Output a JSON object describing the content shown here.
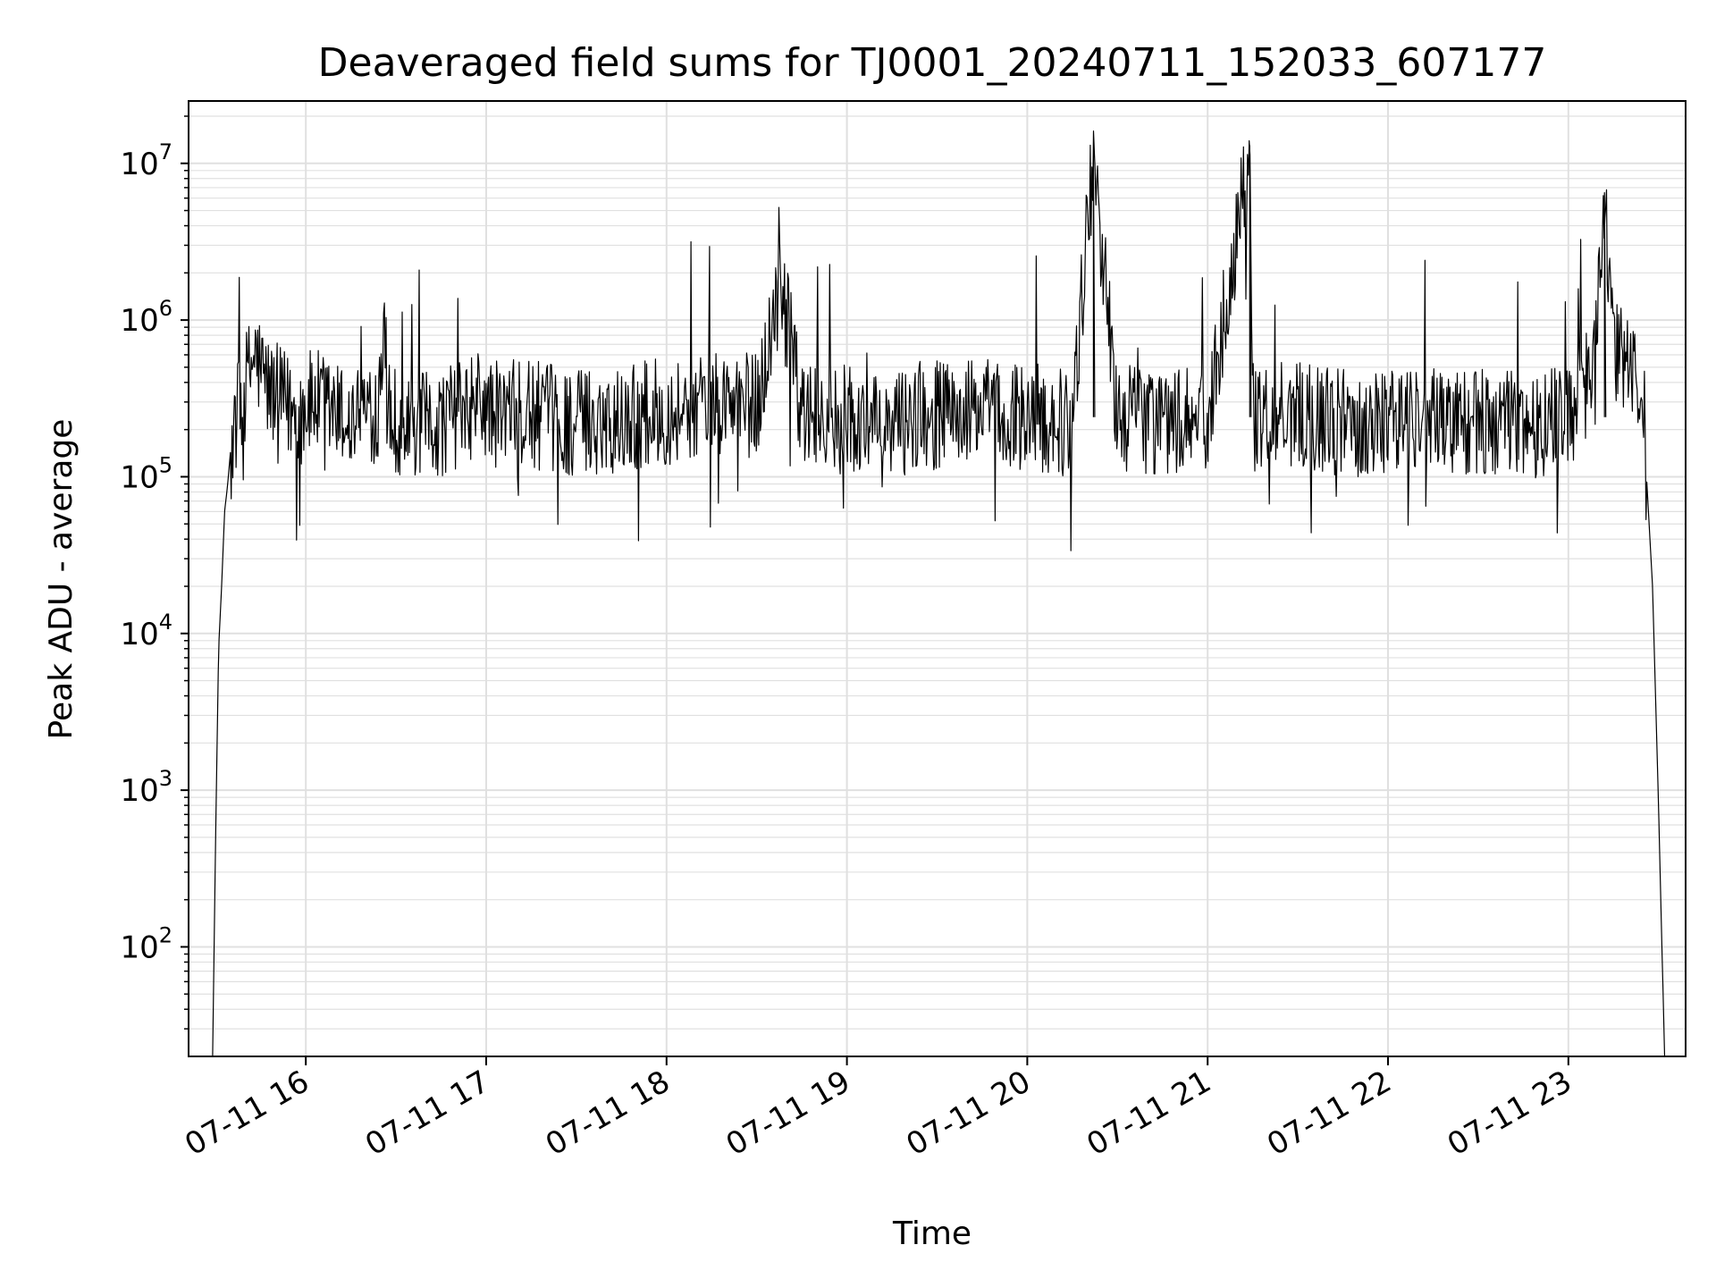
{
  "chart_data": {
    "type": "line",
    "title": "Deaveraged field sums for TJ0001_20240711_152033_607177",
    "xlabel": "Time",
    "ylabel": "Peak ADU - average",
    "yscale": "log",
    "grid": true,
    "legend": "none",
    "colors": {
      "line": "#000000",
      "grid": "#e0e0e0",
      "axes": "#000000",
      "background": "#ffffff"
    },
    "xlim": [
      "2024-07-11 15:21",
      "2024-07-11 23:39"
    ],
    "ylim": [
      20,
      25000000
    ],
    "x_tick_labels": [
      "07-11 16",
      "07-11 17",
      "07-11 18",
      "07-11 19",
      "07-11 20",
      "07-11 21",
      "07-11 22",
      "07-11 23"
    ],
    "x_tick_values": [
      "2024-07-11 16:00",
      "2024-07-11 17:00",
      "2024-07-11 18:00",
      "2024-07-11 19:00",
      "2024-07-11 20:00",
      "2024-07-11 21:00",
      "2024-07-11 22:00",
      "2024-07-11 23:00"
    ],
    "y_tick_labels": [
      {
        "base": "10",
        "exp": "2"
      },
      {
        "base": "10",
        "exp": "3"
      },
      {
        "base": "10",
        "exp": "4"
      },
      {
        "base": "10",
        "exp": "5"
      },
      {
        "base": "10",
        "exp": "6"
      },
      {
        "base": "10",
        "exp": "7"
      }
    ],
    "y_tick_values": [
      100,
      1000,
      10000,
      100000,
      1000000,
      10000000
    ],
    "series": [
      {
        "x": [
          "2024-07-11 15:29",
          "2024-07-11 15:30",
          "2024-07-11 15:31",
          "2024-07-11 15:32",
          "2024-07-11 15:33",
          "2024-07-11 15:34",
          "2024-07-11 15:35",
          "2024-07-11 15:36",
          "2024-07-11 15:38",
          "2024-07-11 15:41",
          "2024-07-11 15:43",
          "2024-07-11 15:45",
          "2024-07-11 15:48",
          "2024-07-11 15:52",
          "2024-07-11 15:57",
          "2024-07-11 16:00",
          "2024-07-11 16:03",
          "2024-07-11 16:15",
          "2024-07-11 16:24",
          "2024-07-11 16:26",
          "2024-07-11 16:28",
          "2024-07-11 16:34",
          "2024-07-11 16:45",
          "2024-07-11 16:58",
          "2024-07-11 17:02",
          "2024-07-11 17:15",
          "2024-07-11 17:30",
          "2024-07-11 17:45",
          "2024-07-11 18:00",
          "2024-07-11 18:15",
          "2024-07-11 18:30",
          "2024-07-11 18:38",
          "2024-07-11 18:45",
          "2024-07-11 19:00",
          "2024-07-11 19:14",
          "2024-07-11 19:15",
          "2024-07-11 19:30",
          "2024-07-11 19:45",
          "2024-07-11 20:00",
          "2024-07-11 20:15",
          "2024-07-11 20:22",
          "2024-07-11 20:30",
          "2024-07-11 20:45",
          "2024-07-11 21:00",
          "2024-07-11 21:14",
          "2024-07-11 21:15",
          "2024-07-11 21:30",
          "2024-07-11 21:45",
          "2024-07-11 22:00",
          "2024-07-11 22:15",
          "2024-07-11 22:30",
          "2024-07-11 22:45",
          "2024-07-11 23:00",
          "2024-07-11 23:05",
          "2024-07-11 23:08",
          "2024-07-11 23:12",
          "2024-07-11 23:15",
          "2024-07-11 23:20",
          "2024-07-11 23:24",
          "2024-07-11 23:26",
          "2024-07-11 23:28",
          "2024-07-11 23:30",
          "2024-07-11 23:32"
        ],
        "y": [
          20,
          500,
          8000,
          20000,
          60000,
          90000,
          150000,
          200000,
          280000,
          450000,
          600000,
          480000,
          350000,
          300000,
          250000,
          280000,
          300000,
          220000,
          280000,
          1300000,
          250000,
          200000,
          220000,
          300000,
          250000,
          250000,
          220000,
          240000,
          260000,
          300000,
          280000,
          1700000,
          250000,
          230000,
          180000,
          220000,
          250000,
          260000,
          240000,
          220000,
          12000000,
          240000,
          230000,
          220000,
          13000000,
          240000,
          260000,
          220000,
          230000,
          240000,
          220000,
          210000,
          250000,
          350000,
          500000,
          6500000,
          550000,
          600000,
          300000,
          100000,
          20000,
          800,
          20
        ]
      }
    ]
  }
}
